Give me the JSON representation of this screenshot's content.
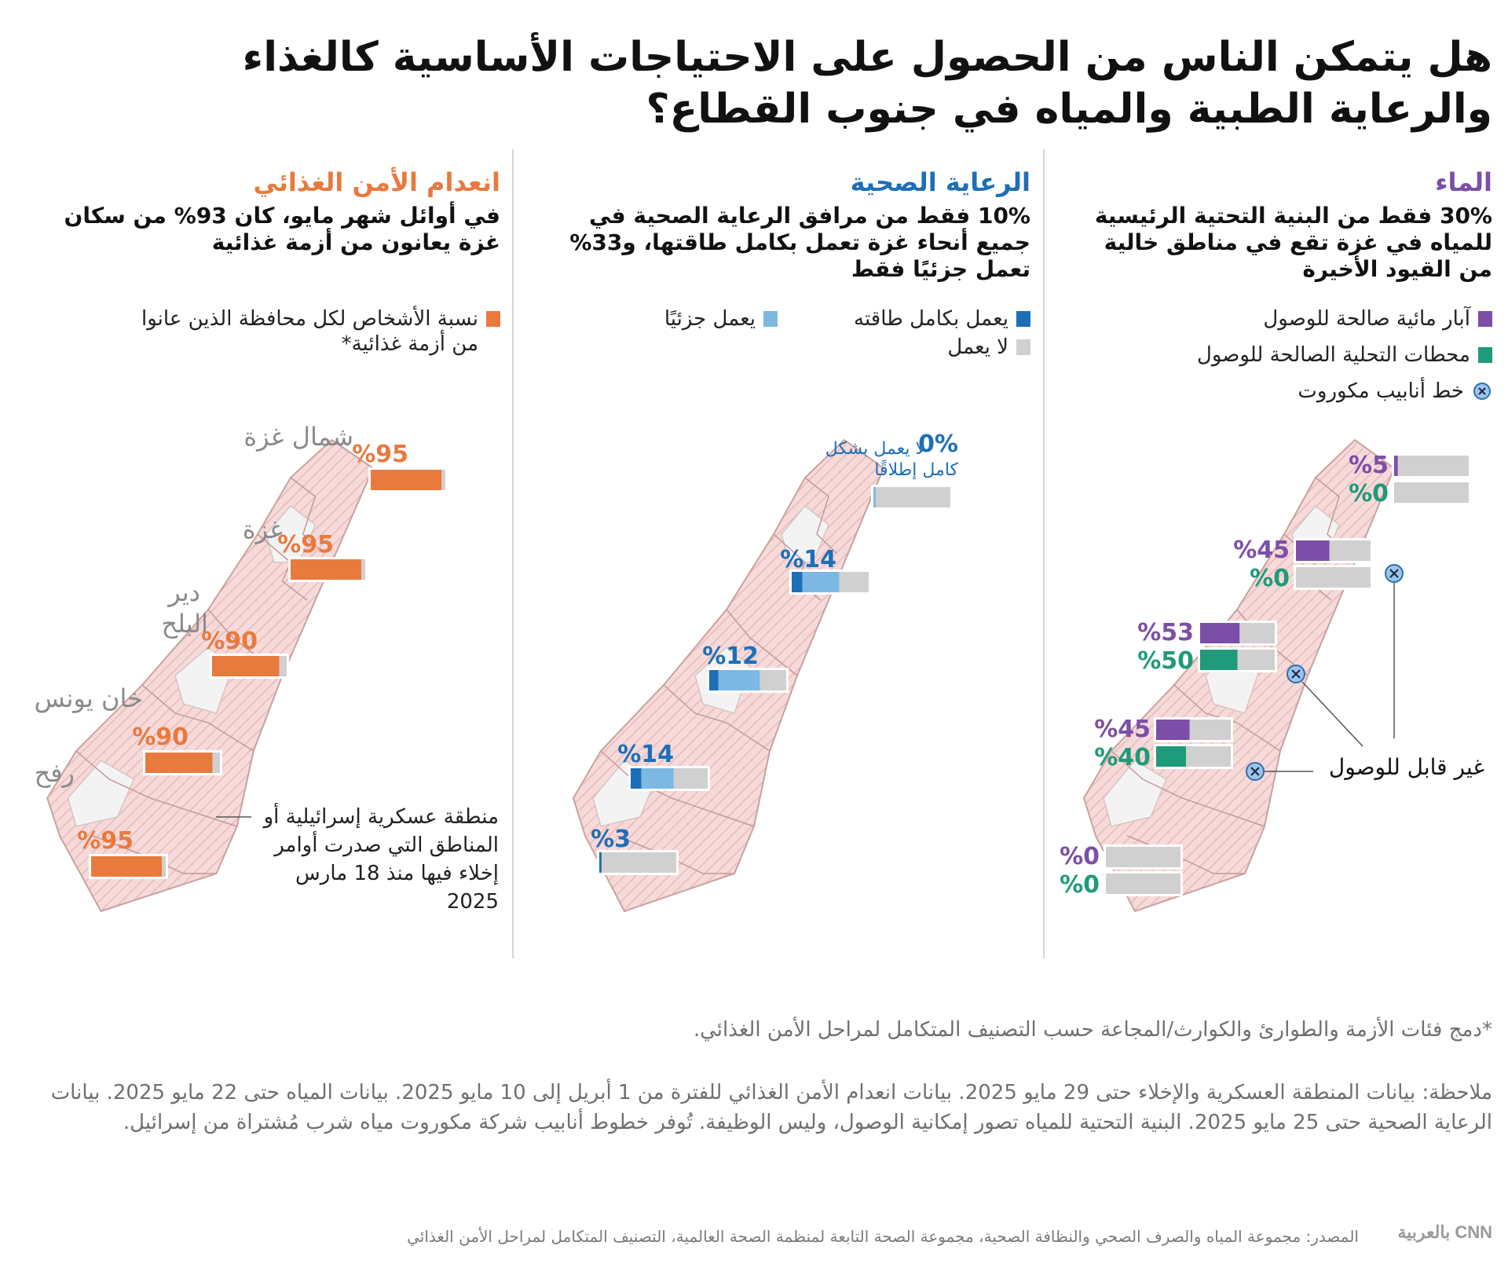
{
  "title": "هل يتمكن الناس من الحصول على الاحتياجات الأساسية كالغذاء والرعاية الطبية والمياه في جنوب القطاع؟",
  "colors": {
    "purple": "#7b4fa8",
    "green": "#1f9a7a",
    "dark_blue": "#1d6fb8",
    "light_blue": "#7db8e3",
    "gray": "#d0d0d0",
    "orange": "#e87a3d",
    "map_pink": "#f6dada",
    "map_stroke": "#c9a1a1"
  },
  "panels": {
    "water": {
      "heading": "الماء",
      "subtitle": "30% فقط من البنية التحتية الرئيسية للمياه في غزة تقع في مناطق خالية من القيود الأخيرة",
      "legend": {
        "wells": "آبار مائية صالحة للوصول",
        "desal": "محطات التحلية الصالحة للوصول",
        "pipeline": "خط أنابيب مكوروت"
      },
      "inaccessible_label": "غير قابل للوصول"
    },
    "health": {
      "heading": "الرعاية الصحية",
      "subtitle": "10% فقط من مرافق الرعاية الصحية في جميع أنحاء غزة تعمل بكامل طاقتها، و33% تعمل جزئيًا فقط",
      "legend": {
        "full": "يعمل بكامل طاقته",
        "partial": "يعمل جزئيًا",
        "none": "لا يعمل"
      },
      "north_note": "لا يعمل بشكل كامل إطلاقًا"
    },
    "food": {
      "heading": "انعدام الأمن الغذائي",
      "subtitle": "في أوائل شهر مايو، كان 93% من سكان غزة يعانون من أزمة غذائية",
      "legend": {
        "crisis": "نسبة الأشخاص لكل محافظة الذين عانوا من أزمة غذائية*"
      },
      "zone_label": "منطقة عسكرية إسرائيلية أو المناطق التي صدرت أوامر إخلاء فيها منذ 18 مارس 2025"
    }
  },
  "chart_data": [
    {
      "type": "bar",
      "title": "الماء",
      "categories": [
        "شمال غزة",
        "غزة",
        "دير البلح",
        "خان يونس",
        "رفح"
      ],
      "series": [
        {
          "name": "آبار مائية صالحة للوصول",
          "values": [
            5,
            45,
            53,
            45,
            0
          ],
          "labels": [
            "%5",
            "%45",
            "%53",
            "%45",
            "%0"
          ]
        },
        {
          "name": "محطات التحلية الصالحة للوصول",
          "values": [
            0,
            0,
            50,
            40,
            0
          ],
          "labels": [
            "%0",
            "%0",
            "%50",
            "%40",
            "%0"
          ]
        }
      ],
      "ylim": [
        0,
        100
      ]
    },
    {
      "type": "bar",
      "title": "الرعاية الصحية",
      "categories": [
        "شمال غزة",
        "غزة",
        "دير البلح",
        "خان يونس",
        "رفح"
      ],
      "series": [
        {
          "name": "يعمل بكامل طاقته",
          "values": [
            0,
            14,
            12,
            14,
            3
          ],
          "labels": [
            "0%",
            "%14",
            "%12",
            "%14",
            "%3"
          ]
        },
        {
          "name": "يعمل جزئيًا",
          "values": [
            3,
            48,
            54,
            42,
            0
          ]
        },
        {
          "name": "لا يعمل",
          "values": [
            97,
            38,
            34,
            44,
            97
          ]
        }
      ],
      "ylim": [
        0,
        100
      ]
    },
    {
      "type": "bar",
      "title": "انعدام الأمن الغذائي",
      "categories": [
        "شمال غزة",
        "غزة",
        "دير البلح",
        "خان يونس",
        "رفح"
      ],
      "series": [
        {
          "name": "نسبة الأشخاص لكل محافظة الذين عانوا من أزمة غذائية*",
          "values": [
            95,
            95,
            90,
            90,
            95
          ],
          "labels": [
            "%95",
            "%95",
            "%90",
            "%90",
            "%95"
          ]
        }
      ],
      "ylim": [
        0,
        100
      ]
    }
  ],
  "regions": {
    "north": "شمال غزة",
    "gaza": "غزة",
    "deir_1": "دير",
    "deir_2": "البلح",
    "khan": "خان يونس",
    "rafah": "رفح"
  },
  "notes": {
    "footnote": "*دمج فئات الأزمة والطوارئ والكوارث/المجاعة حسب التصنيف المتكامل لمراحل الأمن الغذائي.",
    "note": "ملاحظة: بيانات المنطقة العسكرية والإخلاء حتى 29 مايو 2025. بيانات انعدام الأمن الغذائي للفترة من 1 أبريل إلى 10 مايو 2025. بيانات المياه حتى 22 مايو 2025. بيانات الرعاية الصحية حتى 25 مايو 2025. البنية التحتية للمياه تصور إمكانية الوصول، وليس الوظيفة. تُوفر خطوط أنابيب شركة مكوروت مياه شرب مُشتراة من إسرائيل.",
    "source": "المصدر: مجموعة المياه والصرف الصحي والنظافة الصحية، مجموعة الصحة التابعة لمنظمة الصحة العالمية، التصنيف المتكامل لمراحل الأمن الغذائي",
    "logo": "CNN بالعربية"
  }
}
